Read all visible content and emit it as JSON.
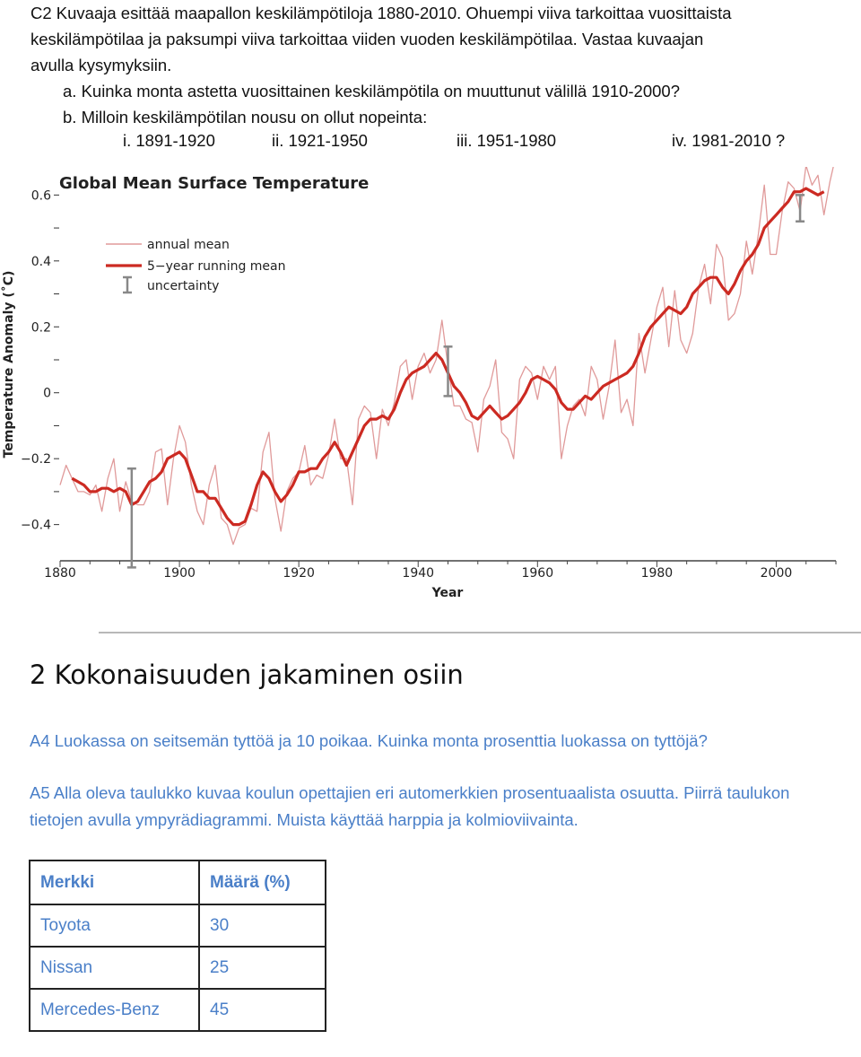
{
  "intro": {
    "lines": [
      "C2 Kuvaaja esittää maapallon keskilämpötiloja 1880-2010. Ohuempi viiva tarkoittaa vuosittaista",
      "keskilämpötilaa ja paksumpi viiva tarkoittaa viiden vuoden keskilämpötilaa. Vastaa kuvaajan",
      "avulla kysymyksiin."
    ],
    "question_a": "a.  Kuinka monta astetta vuosittainen keskilämpötila on muuttunut välillä 1910-2000?",
    "question_b": "b.  Milloin keskilämpötilan nousu on ollut nopeinta:",
    "options": [
      "i.   1891-1920",
      "ii. 1921-1950",
      "iii. 1951-1980",
      "iv. 1981-2010 ?"
    ]
  },
  "chart_data": {
    "type": "line",
    "title": "Global Mean Surface Temperature",
    "xlabel": "Year",
    "ylabel": "Temperature Anomaly (˚C)",
    "xlim": [
      1880,
      2010
    ],
    "ylim": [
      -0.45,
      0.62
    ],
    "xticks": [
      1880,
      1900,
      1920,
      1940,
      1960,
      1980,
      2000
    ],
    "xtick_labels": [
      "1880",
      "1900",
      "1920",
      "1940",
      "1960",
      "1980",
      "2000"
    ],
    "yticks": [
      -0.4,
      -0.2,
      0,
      0.2,
      0.4,
      0.6
    ],
    "ytick_labels": [
      "−0.4",
      "−0.2",
      "0",
      "0.2",
      "0.4",
      "0.6"
    ],
    "legend_position": "top-left",
    "colors": {
      "annual": "#e09a9a",
      "running": "#cc2a22",
      "uncertainty": "#888888"
    },
    "series": [
      {
        "name": "annual mean",
        "x": [
          1880,
          1881,
          1882,
          1883,
          1884,
          1885,
          1886,
          1887,
          1888,
          1889,
          1890,
          1891,
          1892,
          1893,
          1894,
          1895,
          1896,
          1897,
          1898,
          1899,
          1900,
          1901,
          1902,
          1903,
          1904,
          1905,
          1906,
          1907,
          1908,
          1909,
          1910,
          1911,
          1912,
          1913,
          1914,
          1915,
          1916,
          1917,
          1918,
          1919,
          1920,
          1921,
          1922,
          1923,
          1924,
          1925,
          1926,
          1927,
          1928,
          1929,
          1930,
          1931,
          1932,
          1933,
          1934,
          1935,
          1936,
          1937,
          1938,
          1939,
          1940,
          1941,
          1942,
          1943,
          1944,
          1945,
          1946,
          1947,
          1948,
          1949,
          1950,
          1951,
          1952,
          1953,
          1954,
          1955,
          1956,
          1957,
          1958,
          1959,
          1960,
          1961,
          1962,
          1963,
          1964,
          1965,
          1966,
          1967,
          1968,
          1969,
          1970,
          1971,
          1972,
          1973,
          1974,
          1975,
          1976,
          1977,
          1978,
          1979,
          1980,
          1981,
          1982,
          1983,
          1984,
          1985,
          1986,
          1987,
          1988,
          1989,
          1990,
          1991,
          1992,
          1993,
          1994,
          1995,
          1996,
          1997,
          1998,
          1999,
          2000,
          2001,
          2002,
          2003,
          2004,
          2005,
          2006,
          2007,
          2008,
          2009,
          2010
        ],
        "values": [
          -0.28,
          -0.22,
          -0.26,
          -0.3,
          -0.3,
          -0.31,
          -0.28,
          -0.36,
          -0.26,
          -0.2,
          -0.36,
          -0.27,
          -0.33,
          -0.34,
          -0.34,
          -0.3,
          -0.18,
          -0.17,
          -0.34,
          -0.2,
          -0.1,
          -0.15,
          -0.28,
          -0.36,
          -0.4,
          -0.28,
          -0.22,
          -0.38,
          -0.4,
          -0.46,
          -0.41,
          -0.4,
          -0.35,
          -0.36,
          -0.18,
          -0.12,
          -0.32,
          -0.42,
          -0.3,
          -0.26,
          -0.24,
          -0.16,
          -0.28,
          -0.25,
          -0.26,
          -0.19,
          -0.08,
          -0.2,
          -0.2,
          -0.34,
          -0.08,
          -0.04,
          -0.06,
          -0.2,
          -0.05,
          -0.1,
          -0.03,
          0.08,
          0.1,
          -0.02,
          0.08,
          0.12,
          0.06,
          0.1,
          0.22,
          0.08,
          -0.04,
          -0.04,
          -0.08,
          -0.09,
          -0.18,
          -0.02,
          0.02,
          0.1,
          -0.12,
          -0.14,
          -0.2,
          0.04,
          0.08,
          0.06,
          -0.02,
          0.08,
          0.04,
          0.08,
          -0.2,
          -0.1,
          -0.04,
          -0.02,
          -0.07,
          0.08,
          0.04,
          -0.08,
          0.02,
          0.16,
          -0.06,
          -0.02,
          -0.1,
          0.18,
          0.06,
          0.16,
          0.26,
          0.32,
          0.14,
          0.31,
          0.16,
          0.12,
          0.18,
          0.32,
          0.39,
          0.27,
          0.45,
          0.41,
          0.22,
          0.24,
          0.3,
          0.46,
          0.36,
          0.48,
          0.63,
          0.42,
          0.42,
          0.55,
          0.64,
          0.62,
          0.55,
          0.69,
          0.63,
          0.66,
          0.54,
          0.64,
          0.72
        ]
      },
      {
        "name": "5−year running mean",
        "x": [
          1882,
          1883,
          1884,
          1885,
          1886,
          1887,
          1888,
          1889,
          1890,
          1891,
          1892,
          1893,
          1894,
          1895,
          1896,
          1897,
          1898,
          1899,
          1900,
          1901,
          1902,
          1903,
          1904,
          1905,
          1906,
          1907,
          1908,
          1909,
          1910,
          1911,
          1912,
          1913,
          1914,
          1915,
          1916,
          1917,
          1918,
          1919,
          1920,
          1921,
          1922,
          1923,
          1924,
          1925,
          1926,
          1927,
          1928,
          1929,
          1930,
          1931,
          1932,
          1933,
          1934,
          1935,
          1936,
          1937,
          1938,
          1939,
          1940,
          1941,
          1942,
          1943,
          1944,
          1945,
          1946,
          1947,
          1948,
          1949,
          1950,
          1951,
          1952,
          1953,
          1954,
          1955,
          1956,
          1957,
          1958,
          1959,
          1960,
          1961,
          1962,
          1963,
          1964,
          1965,
          1966,
          1967,
          1968,
          1969,
          1970,
          1971,
          1972,
          1973,
          1974,
          1975,
          1976,
          1977,
          1978,
          1979,
          1980,
          1981,
          1982,
          1983,
          1984,
          1985,
          1986,
          1987,
          1988,
          1989,
          1990,
          1991,
          1992,
          1993,
          1994,
          1995,
          1996,
          1997,
          1998,
          1999,
          2000,
          2001,
          2002,
          2003,
          2004,
          2005,
          2006,
          2007,
          2008
        ],
        "values": [
          -0.26,
          -0.27,
          -0.28,
          -0.3,
          -0.3,
          -0.29,
          -0.29,
          -0.3,
          -0.29,
          -0.3,
          -0.34,
          -0.33,
          -0.3,
          -0.27,
          -0.26,
          -0.24,
          -0.2,
          -0.19,
          -0.18,
          -0.2,
          -0.25,
          -0.3,
          -0.3,
          -0.32,
          -0.32,
          -0.35,
          -0.38,
          -0.4,
          -0.4,
          -0.39,
          -0.34,
          -0.28,
          -0.24,
          -0.26,
          -0.3,
          -0.33,
          -0.31,
          -0.28,
          -0.24,
          -0.24,
          -0.23,
          -0.23,
          -0.2,
          -0.18,
          -0.15,
          -0.18,
          -0.22,
          -0.18,
          -0.14,
          -0.1,
          -0.08,
          -0.08,
          -0.07,
          -0.08,
          -0.05,
          0.0,
          0.04,
          0.06,
          0.07,
          0.08,
          0.1,
          0.12,
          0.1,
          0.06,
          0.02,
          0.0,
          -0.03,
          -0.07,
          -0.08,
          -0.06,
          -0.04,
          -0.06,
          -0.08,
          -0.07,
          -0.05,
          -0.03,
          0.0,
          0.04,
          0.05,
          0.04,
          0.03,
          0.01,
          -0.03,
          -0.05,
          -0.05,
          -0.03,
          -0.01,
          -0.02,
          0.0,
          0.02,
          0.03,
          0.04,
          0.05,
          0.06,
          0.08,
          0.12,
          0.17,
          0.2,
          0.22,
          0.24,
          0.26,
          0.25,
          0.24,
          0.26,
          0.3,
          0.32,
          0.34,
          0.35,
          0.35,
          0.32,
          0.3,
          0.33,
          0.37,
          0.4,
          0.42,
          0.45,
          0.5,
          0.52,
          0.54,
          0.56,
          0.58,
          0.61,
          0.61,
          0.62,
          0.61,
          0.6,
          0.61
        ]
      }
    ],
    "uncertainty_bars": [
      {
        "x": 1892,
        "low": -0.53,
        "high": -0.23
      },
      {
        "x": 1945,
        "low": -0.01,
        "high": 0.14
      },
      {
        "x": 2004,
        "low": 0.52,
        "high": 0.6
      }
    ],
    "legend": [
      "annual mean",
      "5−year running mean",
      "uncertainty"
    ]
  },
  "section": {
    "heading": "2 Kokonaisuuden jakaminen osiin",
    "a4": "A4 Luokassa on seitsemän tyttöä ja 10 poikaa. Kuinka monta prosenttia luokassa on tyttöjä?",
    "a5": "A5 Alla oleva taulukko kuvaa koulun opettajien eri automerkkien prosentuaalista osuutta. Piirrä taulukon tietojen avulla ympyrädiagrammi. Muista käyttää harppia ja kolmioviivainta."
  },
  "table": {
    "headers": [
      "Merkki",
      "Määrä (%)"
    ],
    "rows": [
      [
        "Toyota",
        "30"
      ],
      [
        "Nissan",
        "25"
      ],
      [
        "Mercedes-Benz",
        "45"
      ]
    ]
  }
}
